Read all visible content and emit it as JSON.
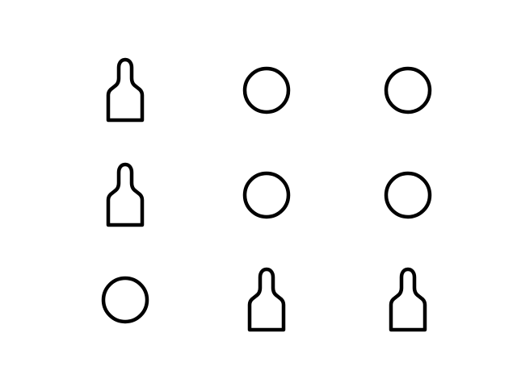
{
  "theme": {
    "background": "#ffffff",
    "stroke": "#000000"
  },
  "grid": {
    "rows": 3,
    "cols": 3,
    "cells": [
      {
        "icon": "person-icon"
      },
      {
        "icon": "circle-icon"
      },
      {
        "icon": "circle-icon"
      },
      {
        "icon": "person-icon"
      },
      {
        "icon": "circle-icon"
      },
      {
        "icon": "circle-icon"
      },
      {
        "icon": "circle-icon"
      },
      {
        "icon": "person-icon"
      },
      {
        "icon": "person-icon"
      }
    ]
  }
}
